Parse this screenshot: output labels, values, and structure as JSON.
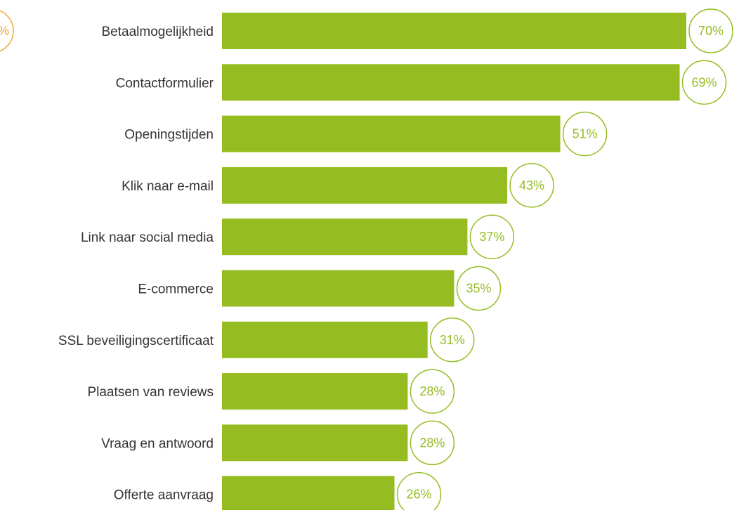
{
  "chart_data": {
    "type": "bar",
    "orientation": "horizontal",
    "categories": [
      "Betaalmogelijkheid",
      "Contactformulier",
      "Openingstijden",
      "Klik naar e-mail",
      "Link naar social media",
      "E-commerce",
      "SSL beveiligingscertificaat",
      "Plaatsen van reviews",
      "Vraag en antwoord",
      "Offerte aanvraag"
    ],
    "values": [
      70,
      69,
      51,
      43,
      37,
      35,
      31,
      28,
      28,
      26
    ],
    "value_labels": [
      "70%",
      "69%",
      "51%",
      "43%",
      "37%",
      "35%",
      "31%",
      "28%",
      "28%",
      "26%"
    ],
    "partial_badge_text": "%",
    "title": "",
    "xlabel": "",
    "ylabel": "",
    "xlim": [
      0,
      70
    ],
    "grid": false,
    "legend": "none"
  },
  "colors": {
    "bar": "#95bd22",
    "badge_outline": "#95bd22",
    "badge_text": "#95bd22",
    "partial_badge": "#f0a830",
    "label_text": "#333333"
  }
}
